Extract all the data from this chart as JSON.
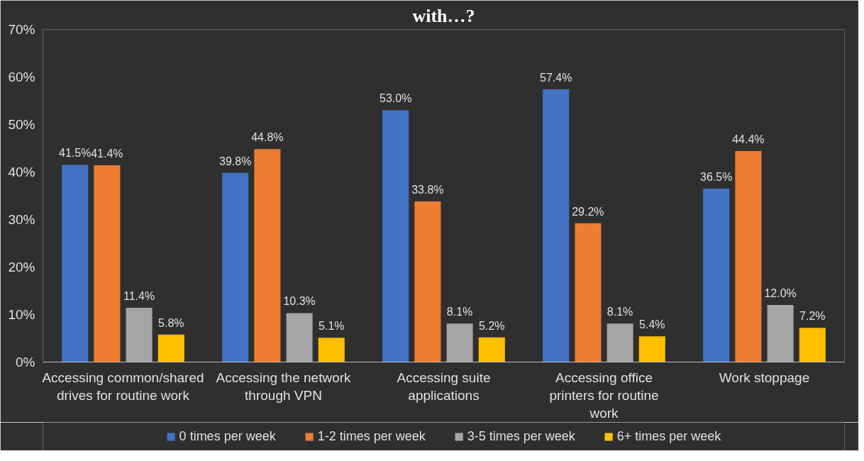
{
  "chart_data": {
    "type": "bar",
    "title": "with…?",
    "categories": [
      "Accessing common/shared drives for routine work",
      "Accessing the network through VPN",
      "Accessing suite applications",
      "Accessing office printers for routine work",
      "Work stoppage"
    ],
    "series": [
      {
        "name": "0 times per week",
        "color": "#4472c4",
        "values": [
          41.5,
          39.8,
          53.0,
          57.4,
          36.5
        ],
        "value_labels": [
          "41.5%",
          "39.8%",
          "53.0%",
          "57.4%",
          "36.5%"
        ]
      },
      {
        "name": "1-2 times per week",
        "color": "#ed7d31",
        "values": [
          41.4,
          44.8,
          33.8,
          29.2,
          44.4
        ],
        "value_labels": [
          "41.4%",
          "44.8%",
          "33.8%",
          "29.2%",
          "44.4%"
        ]
      },
      {
        "name": "3-5 times per week",
        "color": "#a5a5a5",
        "values": [
          11.4,
          10.3,
          8.1,
          8.1,
          12.0
        ],
        "value_labels": [
          "11.4%",
          "10.3%",
          "8.1%",
          "8.1%",
          "12.0%"
        ]
      },
      {
        "name": "6+ times per week",
        "color": "#ffc000",
        "values": [
          5.8,
          5.1,
          5.2,
          5.4,
          7.2
        ],
        "value_labels": [
          "5.8%",
          "5.1%",
          "5.2%",
          "5.4%",
          "7.2%"
        ]
      }
    ],
    "ylim": [
      0,
      70
    ],
    "yticks": [
      {
        "value": 0,
        "label": "0%"
      },
      {
        "value": 10,
        "label": "10%"
      },
      {
        "value": 20,
        "label": "20%"
      },
      {
        "value": 30,
        "label": "30%"
      },
      {
        "value": 40,
        "label": "40%"
      },
      {
        "value": 50,
        "label": "50%"
      },
      {
        "value": 60,
        "label": "60%"
      },
      {
        "value": 70,
        "label": "70%"
      }
    ],
    "grid": false,
    "legend": "bottom"
  }
}
